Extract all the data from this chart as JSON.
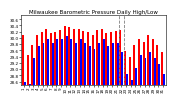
{
  "title": "Milwaukee Barometric Pressure Daily High/Low",
  "ylim": [
    28.5,
    30.75
  ],
  "yticks": [
    28.6,
    28.8,
    29.0,
    29.2,
    29.4,
    29.6,
    29.8,
    30.0,
    30.2,
    30.4,
    30.6
  ],
  "background_color": "#ffffff",
  "dashed_vlines": [
    20.5,
    21.5
  ],
  "highs": [
    30.1,
    29.45,
    29.78,
    30.08,
    30.2,
    30.28,
    30.16,
    30.2,
    30.26,
    30.38,
    30.36,
    30.28,
    30.3,
    30.22,
    30.18,
    30.08,
    30.24,
    30.28,
    30.16,
    30.2,
    30.22,
    30.26,
    29.58,
    29.38,
    29.78,
    29.98,
    29.88,
    30.08,
    29.98,
    29.78,
    29.55
  ],
  "lows": [
    28.6,
    28.52,
    29.35,
    29.75,
    29.85,
    29.95,
    29.85,
    29.95,
    29.95,
    30.05,
    29.95,
    29.85,
    29.95,
    29.85,
    29.75,
    29.65,
    29.85,
    29.95,
    29.75,
    29.85,
    29.85,
    29.55,
    28.85,
    28.65,
    29.05,
    29.45,
    29.35,
    29.55,
    29.35,
    29.15,
    28.85
  ],
  "high_color": "#ff0000",
  "low_color": "#0000ff",
  "title_fontsize": 4.0,
  "tick_fontsize": 3.0,
  "n_days": 31
}
